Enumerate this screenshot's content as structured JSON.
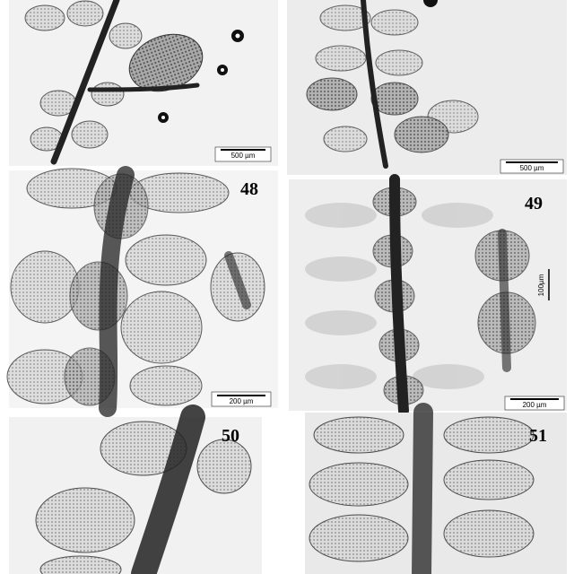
{
  "panels": [
    {
      "scale_bar": "500 µm"
    },
    {
      "scale_bar": "500 µm"
    },
    {
      "label": "48",
      "scale_bar": "200 µm"
    },
    {
      "label": "49",
      "scale_bar": "200 µm",
      "inset_scale_bar": "100µm"
    },
    {
      "label": "50"
    },
    {
      "label": "51"
    }
  ]
}
